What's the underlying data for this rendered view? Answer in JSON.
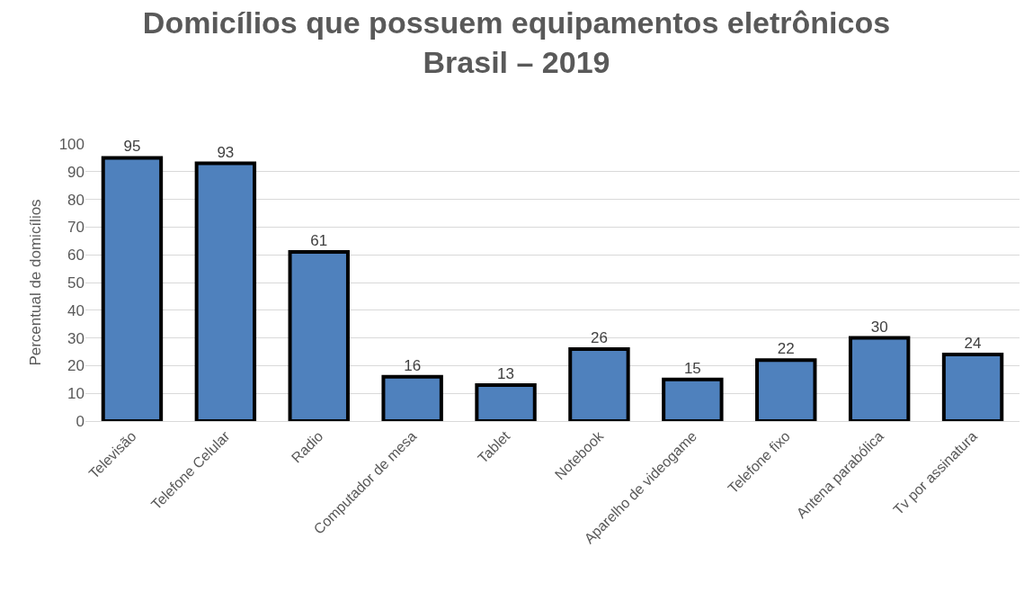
{
  "chart_data": {
    "type": "bar",
    "title": "Domicílios que possuem equipamentos eletrônicos\nBrasil – 2019",
    "ylabel": "Percentual de domicílios",
    "categories": [
      "Televisão",
      "Telefone Celular",
      "Radio",
      "Computador de mesa",
      "Tablet",
      "Notebook",
      "Aparelho de videogame",
      "Telefone fixo",
      "Antena parabólica",
      "Tv por assinatura"
    ],
    "values": [
      95,
      93,
      61,
      16,
      13,
      26,
      15,
      22,
      30,
      24
    ],
    "color": "#4f81bd",
    "ylim": [
      0,
      100
    ],
    "yticks": [
      0,
      10,
      20,
      30,
      40,
      50,
      60,
      70,
      80,
      90,
      100
    ],
    "grid": "y",
    "data_labels": true
  }
}
